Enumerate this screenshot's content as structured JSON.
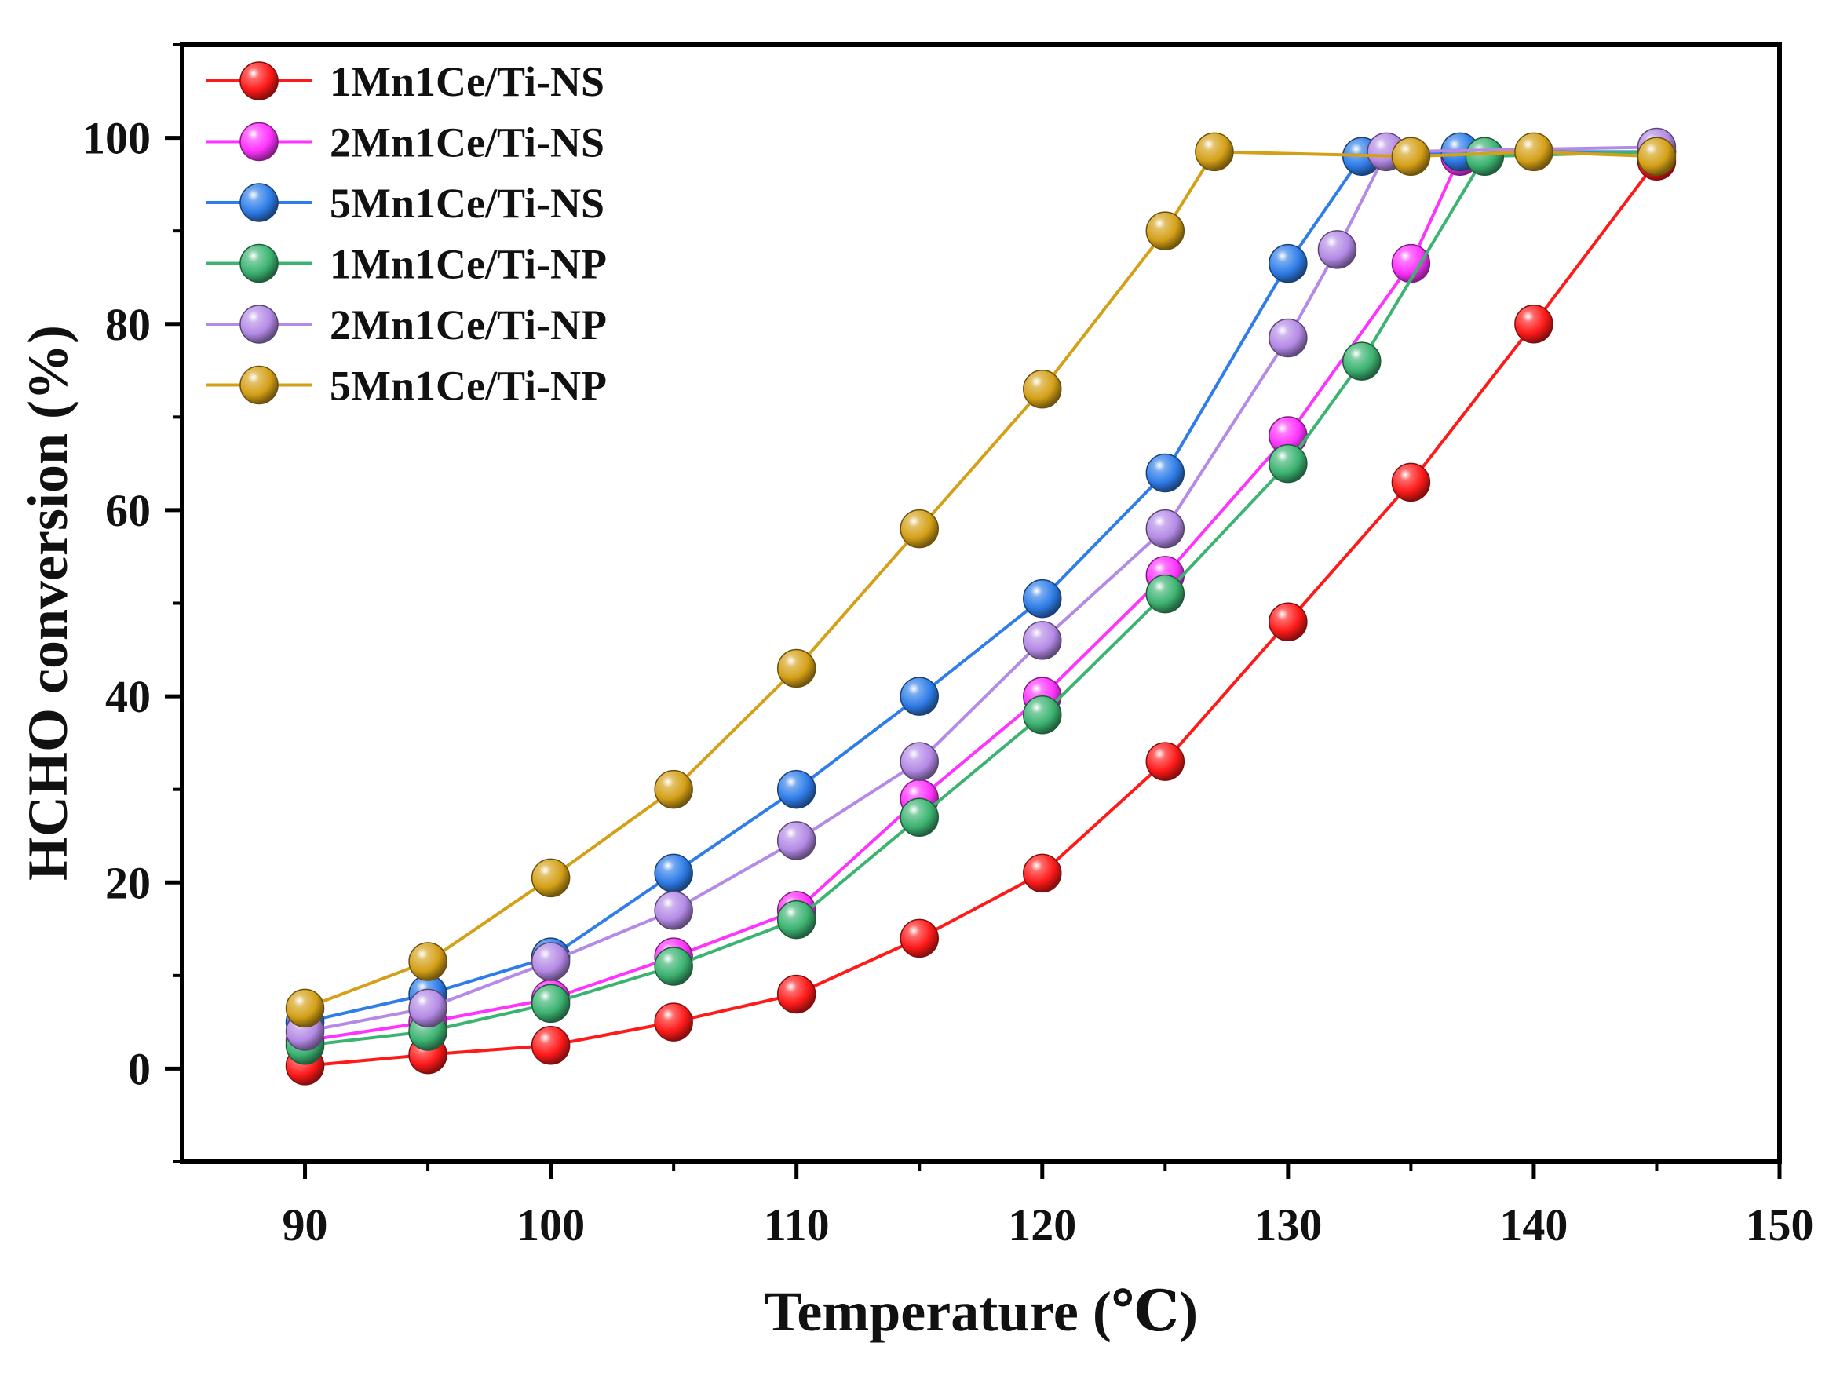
{
  "chart_data": {
    "type": "line",
    "title": "",
    "xlabel": "Temperature (℃)",
    "ylabel": "HCHO conversion (%)",
    "xlim": [
      85,
      150
    ],
    "ylim": [
      -10,
      110
    ],
    "xticks": [
      90,
      100,
      110,
      120,
      130,
      140,
      150
    ],
    "yticks": [
      0,
      20,
      40,
      60,
      80,
      100
    ],
    "grid": false,
    "legend_position": "top-left",
    "series": [
      {
        "name": "1Mn1Ce/Ti-NS",
        "color": "#ff1a1a",
        "x": [
          90,
          95,
          100,
          105,
          110,
          115,
          120,
          125,
          130,
          135,
          140,
          145
        ],
        "y": [
          0.3,
          1.5,
          2.5,
          5,
          8,
          14,
          21,
          33,
          48,
          63,
          80,
          97.5
        ]
      },
      {
        "name": "2Mn1Ce/Ti-NS",
        "color": "#ff33ff",
        "x": [
          90,
          95,
          100,
          105,
          110,
          115,
          120,
          125,
          130,
          135,
          137,
          145
        ],
        "y": [
          3,
          5,
          7.5,
          12,
          17,
          29,
          40,
          53,
          68,
          86.5,
          98,
          98.5
        ]
      },
      {
        "name": "5Mn1Ce/Ti-NS",
        "color": "#2f7de8",
        "x": [
          90,
          95,
          100,
          105,
          110,
          115,
          120,
          125,
          130,
          133,
          137,
          145
        ],
        "y": [
          5,
          8,
          12,
          21,
          30,
          40,
          50.5,
          64,
          86.5,
          98,
          98.5,
          98.5
        ]
      },
      {
        "name": "1Mn1Ce/Ti-NP",
        "color": "#3cb371",
        "x": [
          90,
          95,
          100,
          105,
          110,
          115,
          120,
          125,
          130,
          133,
          138,
          145
        ],
        "y": [
          2.5,
          4,
          7,
          11,
          16,
          27,
          38,
          51,
          65,
          76,
          98,
          98.5
        ]
      },
      {
        "name": "2Mn1Ce/Ti-NP",
        "color": "#b48ae6",
        "x": [
          90,
          95,
          100,
          105,
          110,
          115,
          120,
          125,
          130,
          132,
          134,
          145
        ],
        "y": [
          4,
          6.5,
          11.5,
          17,
          24.5,
          33,
          46,
          58,
          78.5,
          88,
          98.5,
          99
        ]
      },
      {
        "name": "5Mn1Ce/Ti-NP",
        "color": "#d4a017",
        "x": [
          90,
          95,
          100,
          105,
          110,
          115,
          120,
          125,
          127,
          135,
          140,
          145
        ],
        "y": [
          6.5,
          11.5,
          20.5,
          30,
          43,
          58,
          73,
          90,
          98.5,
          98,
          98.5,
          98
        ]
      }
    ]
  }
}
